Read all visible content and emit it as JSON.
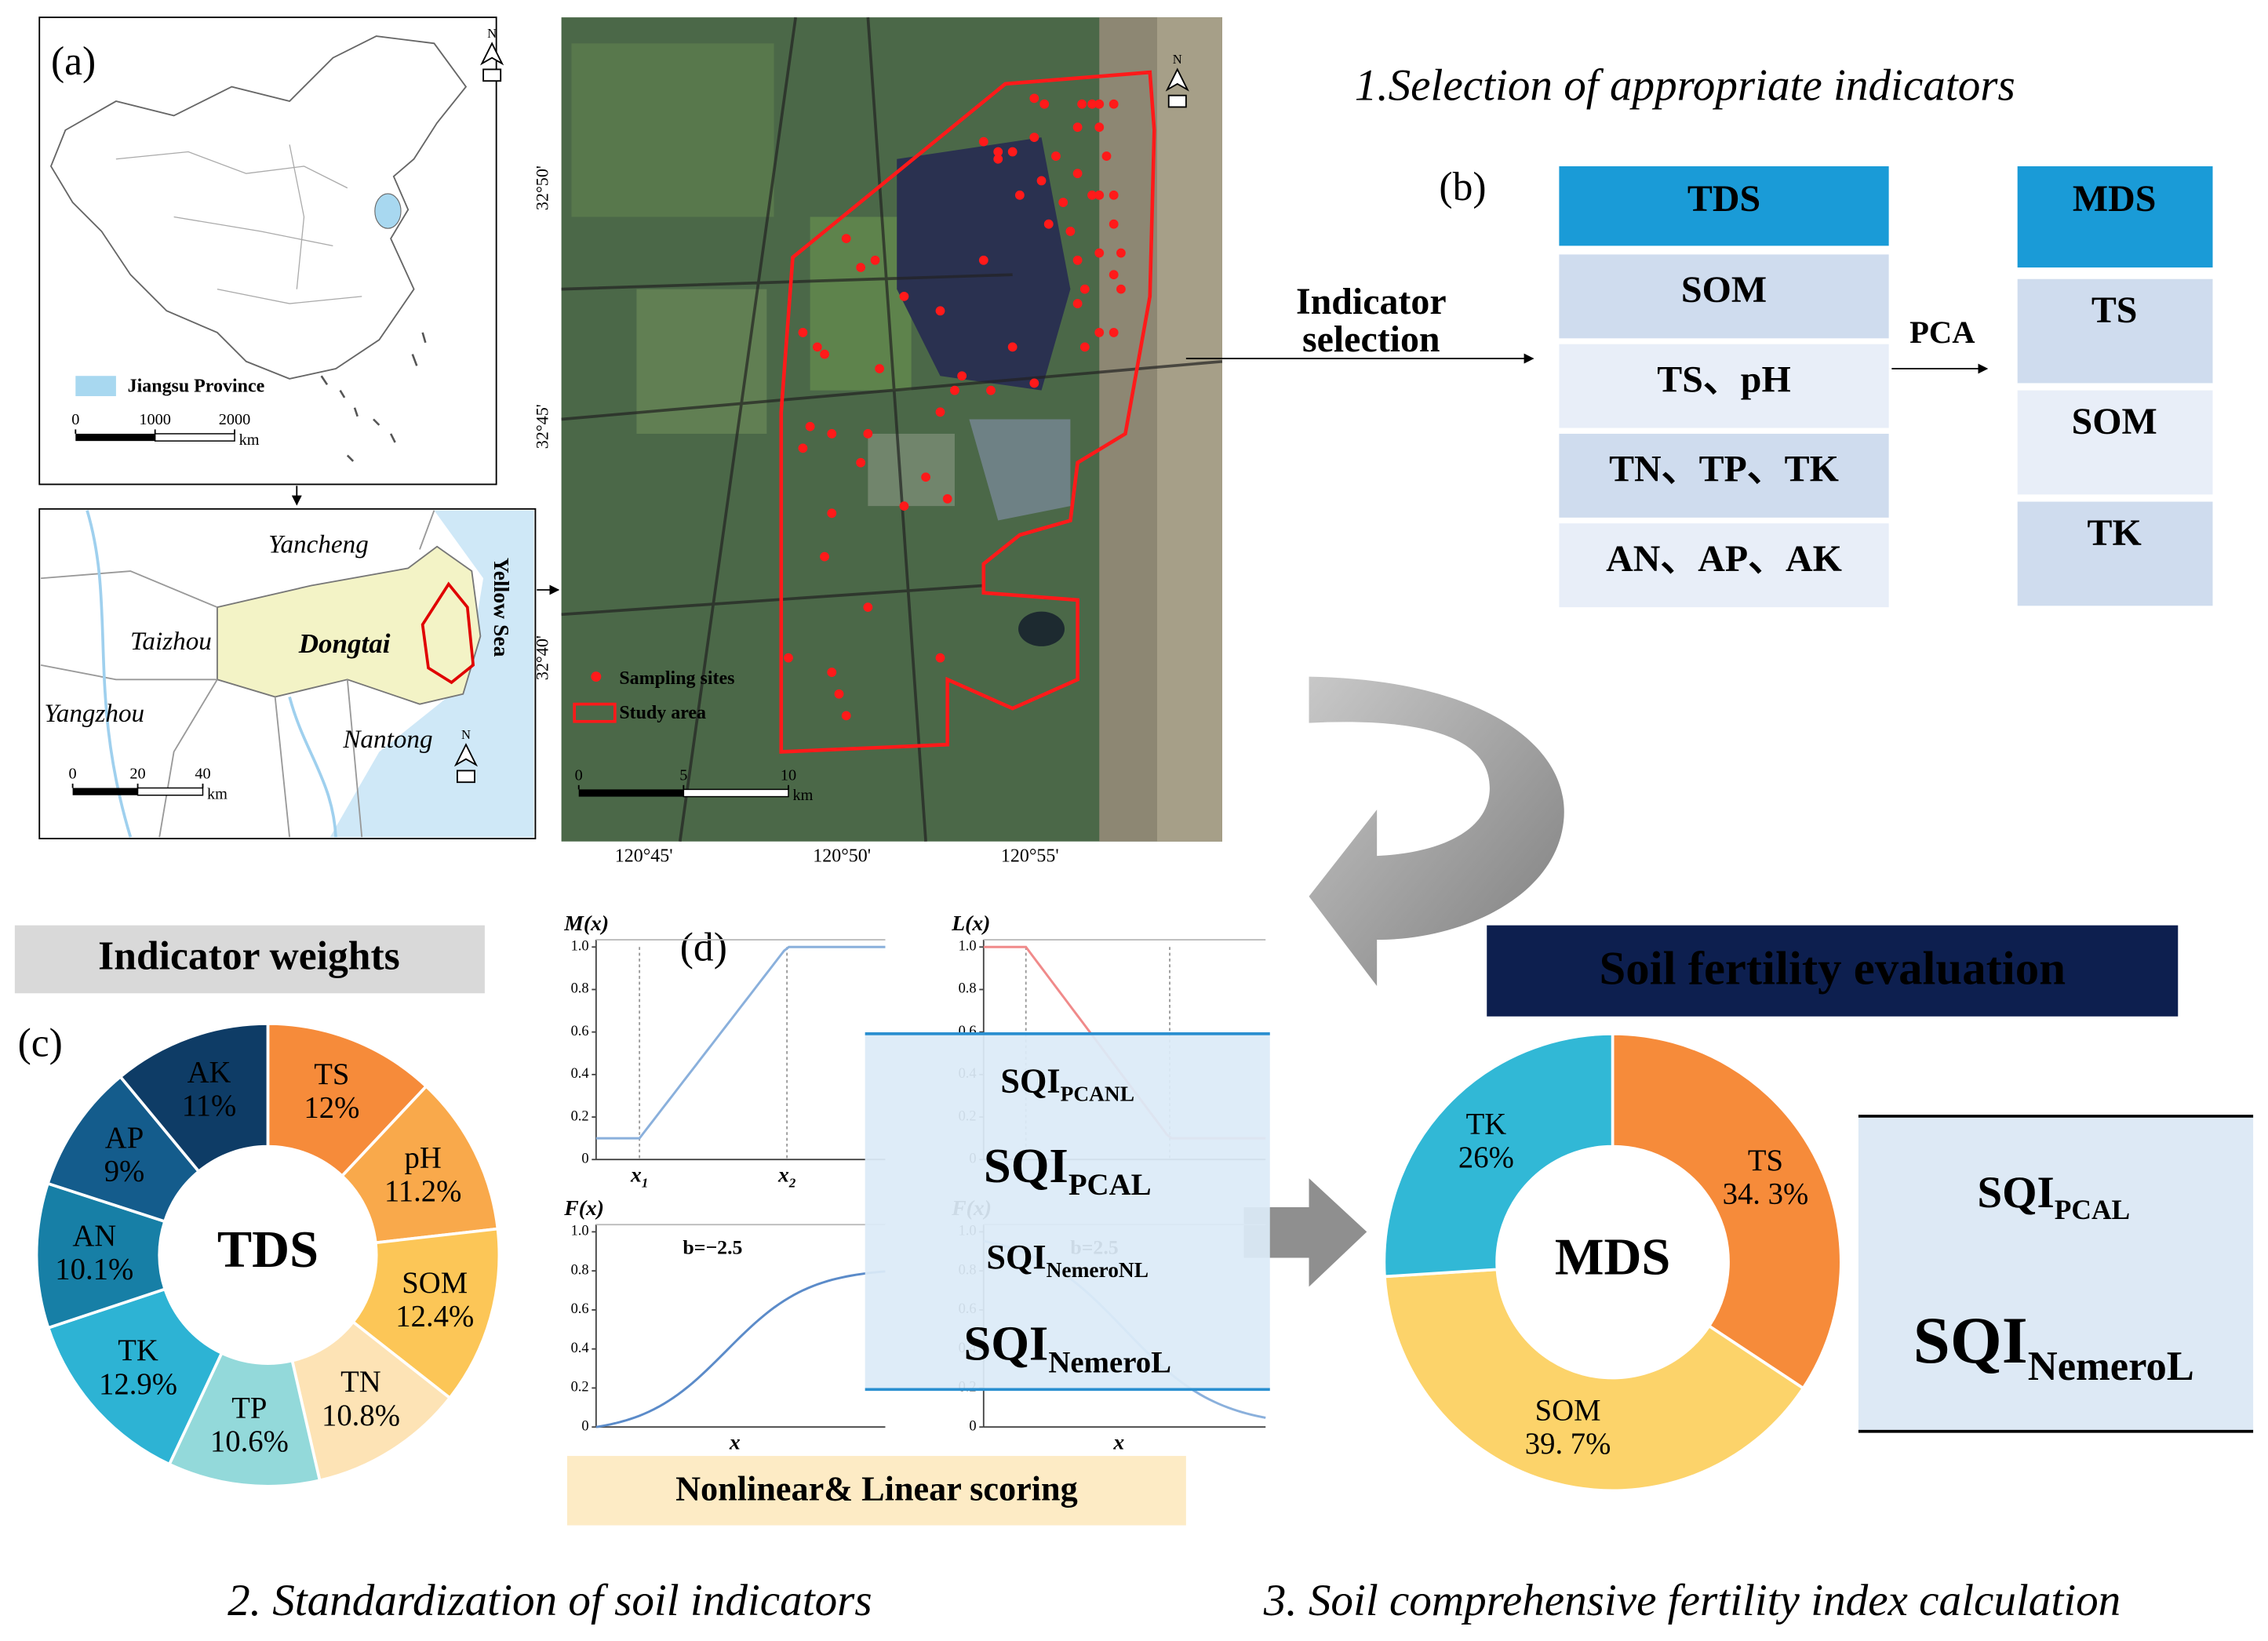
{
  "steps": [
    "1.Selection of appropriate indicators",
    "2. Standardization of soil indicators",
    "3. Soil comprehensive fertility index calculation"
  ],
  "panel_a": {
    "label": "(a)",
    "north": "N",
    "china_legend": "Jiangsu Province",
    "china_scale": [
      0,
      1000,
      2000
    ],
    "scale_unit": "km",
    "cities": [
      "Yancheng",
      "Taizhou",
      "Dongtai",
      "Yangzhou",
      "Nantong"
    ],
    "sea": "Yellow Sea",
    "region_scale": [
      0,
      20,
      40
    ],
    "latitudes": [
      "32°50'",
      "32°45'",
      "32°40'"
    ],
    "longitudes": [
      "120°45'",
      "120°50'",
      "120°55'"
    ],
    "sat_legend": [
      "Sampling sites",
      "Study area"
    ],
    "sat_scale": [
      0,
      5,
      10
    ]
  },
  "panel_b": {
    "label": "(b)",
    "arrow_label": [
      "Indicator",
      "selection"
    ],
    "tds_header": "TDS",
    "tds_rows": [
      "SOM",
      "TS、pH",
      "TN、TP、TK",
      "AN、AP、AK"
    ],
    "pca": "PCA",
    "mds_header": "MDS",
    "mds_rows": [
      "TS",
      "SOM",
      "TK"
    ]
  },
  "panel_c": {
    "label": "(c)",
    "heading": "Indicator weights",
    "center": "TDS",
    "categories": [
      "TS",
      "pH",
      "SOM",
      "TN",
      "TP",
      "TK",
      "AN",
      "AP",
      "AK"
    ],
    "values": [
      12,
      11.2,
      12.4,
      10.8,
      10.6,
      12.9,
      10.1,
      9,
      11
    ],
    "value_labels": [
      "12%",
      "11.2%",
      "12.4%",
      "10.8%",
      "10.6%",
      "12.9%",
      "10.1%",
      "9%",
      "11%"
    ],
    "colors": [
      "#f68b3a",
      "#f9a94b",
      "#fcc657",
      "#fde3b5",
      "#93d9da",
      "#2db3d4",
      "#177fa6",
      "#145c8c",
      "#0e3c66"
    ]
  },
  "panel_d": {
    "label": "(d)",
    "yticks": [
      0,
      0.2,
      0.4,
      0.6,
      0.8,
      {
        "value": 1,
        "label": "1.0"
      }
    ],
    "plots": [
      {
        "title": "M(x)",
        "x_labels": [
          {
            "base": "x",
            "sub": "1"
          },
          {
            "base": "x",
            "sub": "2"
          }
        ]
      },
      {
        "title": "L(x)"
      },
      {
        "title": "F(x)",
        "x_labels": [
          {
            "base": "x"
          }
        ],
        "note": "b=−2.5"
      },
      {
        "title": "F(x)",
        "x_labels": [
          {
            "base": "x"
          }
        ],
        "note": "b=2.5"
      }
    ],
    "indices": [
      {
        "base": "SQI",
        "sub": "PCANL",
        "color": "#000000"
      },
      {
        "base": "SQI",
        "sub": "PCAL",
        "color": "#e00000"
      },
      {
        "base": "SQI",
        "sub": "NemeroNL",
        "color": "#000000"
      },
      {
        "base": "SQI",
        "sub": "NemeroL",
        "color": "#e00000"
      }
    ],
    "caption": "Nonlinear& Linear scoring"
  },
  "evaluation": {
    "title": "Soil fertility  evaluation",
    "center": "MDS",
    "categories": [
      "TS",
      "SOM",
      "TK"
    ],
    "values": [
      34.3,
      39.7,
      26
    ],
    "value_labels": [
      "34. 3%",
      "39. 7%",
      "26%"
    ],
    "colors": [
      "#f68b3a",
      "#fcd36a",
      "#31b8d6"
    ],
    "results": [
      {
        "base": "SQI",
        "sub": "PCAL",
        "color": "#000000"
      },
      {
        "base": "SQI",
        "sub": "NemeroL",
        "color": "#e00000"
      }
    ]
  }
}
